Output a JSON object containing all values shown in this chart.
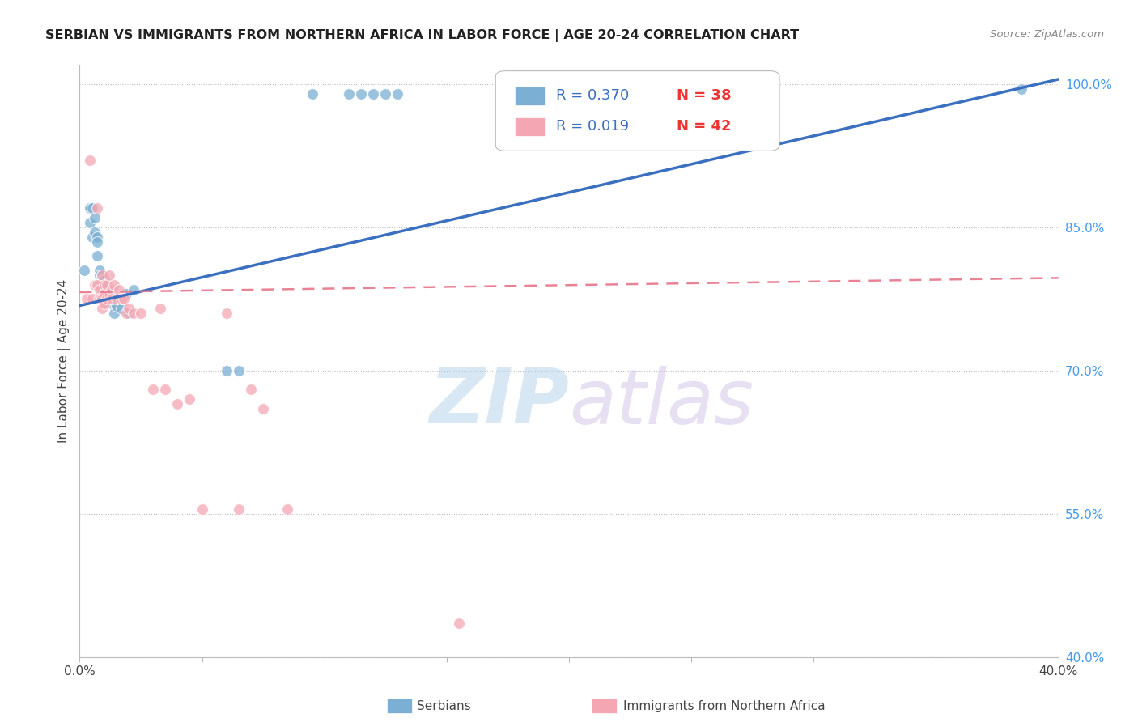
{
  "title": "SERBIAN VS IMMIGRANTS FROM NORTHERN AFRICA IN LABOR FORCE | AGE 20-24 CORRELATION CHART",
  "source": "Source: ZipAtlas.com",
  "ylabel": "In Labor Force | Age 20-24",
  "xlim": [
    0.0,
    0.4
  ],
  "ylim": [
    0.4,
    1.02
  ],
  "ytick_labels": [
    "40.0%",
    "55.0%",
    "70.0%",
    "85.0%",
    "100.0%"
  ],
  "ytick_vals": [
    0.4,
    0.55,
    0.7,
    0.85,
    1.0
  ],
  "xtick_vals": [
    0.0,
    0.05,
    0.1,
    0.15,
    0.2,
    0.25,
    0.3,
    0.35,
    0.4
  ],
  "xtick_labels": [
    "0.0%",
    "",
    "",
    "",
    "",
    "",
    "",
    "",
    "40.0%"
  ],
  "legend_R_blue": "0.370",
  "legend_N_blue": "38",
  "legend_R_pink": "0.019",
  "legend_N_pink": "42",
  "blue_color": "#7BAFD4",
  "pink_color": "#F4A7B3",
  "blue_line_color": "#3B6FBF",
  "pink_line_color": "#E8758A",
  "watermark_zip": "ZIP",
  "watermark_atlas": "atlas",
  "blue_scatter_x": [
    0.002,
    0.004,
    0.004,
    0.005,
    0.005,
    0.006,
    0.006,
    0.007,
    0.007,
    0.007,
    0.008,
    0.008,
    0.009,
    0.009,
    0.009,
    0.01,
    0.01,
    0.01,
    0.011,
    0.011,
    0.012,
    0.013,
    0.014,
    0.015,
    0.017,
    0.019,
    0.02,
    0.022,
    0.06,
    0.065,
    0.095,
    0.11,
    0.115,
    0.12,
    0.125,
    0.13,
    0.27,
    0.385
  ],
  "blue_scatter_y": [
    0.805,
    0.87,
    0.855,
    0.87,
    0.84,
    0.86,
    0.845,
    0.84,
    0.835,
    0.82,
    0.805,
    0.8,
    0.8,
    0.795,
    0.785,
    0.795,
    0.79,
    0.78,
    0.78,
    0.775,
    0.78,
    0.77,
    0.76,
    0.768,
    0.765,
    0.78,
    0.76,
    0.785,
    0.7,
    0.7,
    0.99,
    0.99,
    0.99,
    0.99,
    0.99,
    0.99,
    0.99,
    0.995
  ],
  "pink_scatter_x": [
    0.003,
    0.004,
    0.005,
    0.006,
    0.007,
    0.007,
    0.008,
    0.008,
    0.009,
    0.009,
    0.009,
    0.01,
    0.01,
    0.01,
    0.011,
    0.011,
    0.012,
    0.012,
    0.013,
    0.013,
    0.014,
    0.015,
    0.016,
    0.017,
    0.018,
    0.019,
    0.02,
    0.022,
    0.025,
    0.03,
    0.033,
    0.035,
    0.04,
    0.045,
    0.05,
    0.06,
    0.065,
    0.07,
    0.075,
    0.085,
    0.155,
    0.22
  ],
  "pink_scatter_y": [
    0.775,
    0.92,
    0.775,
    0.79,
    0.87,
    0.79,
    0.785,
    0.775,
    0.8,
    0.775,
    0.765,
    0.79,
    0.78,
    0.77,
    0.79,
    0.775,
    0.8,
    0.78,
    0.785,
    0.775,
    0.79,
    0.775,
    0.785,
    0.775,
    0.775,
    0.76,
    0.765,
    0.76,
    0.76,
    0.68,
    0.765,
    0.68,
    0.665,
    0.67,
    0.555,
    0.76,
    0.555,
    0.68,
    0.66,
    0.555,
    0.435,
    0.99
  ],
  "blue_trend_x": [
    0.0,
    0.4
  ],
  "blue_trend_y": [
    0.768,
    1.005
  ],
  "pink_trend_x": [
    0.0,
    0.4
  ],
  "pink_trend_y": [
    0.782,
    0.797
  ]
}
